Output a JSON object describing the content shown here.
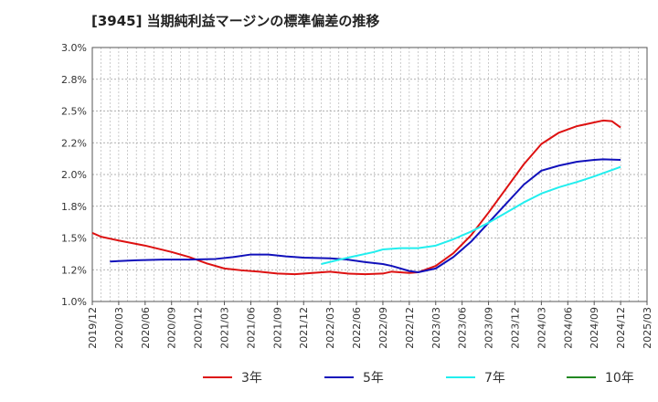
{
  "chart_data": {
    "type": "line",
    "title": "[3945]  当期純利益マージンの標準偏差の推移",
    "xlabel": "",
    "ylabel": "",
    "ylim": [
      1.0,
      3.0
    ],
    "y_ticks": [
      "1.0%",
      "1.2%",
      "1.5%",
      "1.8%",
      "2.0%",
      "2.2%",
      "2.5%",
      "2.8%",
      "3.0%"
    ],
    "x_ticks": [
      "2019/12",
      "2020/03",
      "2020/06",
      "2020/09",
      "2020/12",
      "2021/03",
      "2021/06",
      "2021/09",
      "2021/12",
      "2022/03",
      "2022/06",
      "2022/09",
      "2022/12",
      "2023/03",
      "2023/06",
      "2023/09",
      "2023/12",
      "2024/03",
      "2024/06",
      "2024/09",
      "2024/12",
      "2025/03"
    ],
    "grid": true,
    "legend_position": "bottom",
    "series": [
      {
        "name": "3年",
        "color": "#dd1111",
        "points": [
          [
            "2019/12",
            1.54
          ],
          [
            "2020/01",
            1.51
          ],
          [
            "2020/03",
            1.48
          ],
          [
            "2020/06",
            1.44
          ],
          [
            "2020/09",
            1.39
          ],
          [
            "2020/11",
            1.35
          ],
          [
            "2021/01",
            1.3
          ],
          [
            "2021/03",
            1.26
          ],
          [
            "2021/05",
            1.245
          ],
          [
            "2021/07",
            1.235
          ],
          [
            "2021/09",
            1.22
          ],
          [
            "2021/11",
            1.215
          ],
          [
            "2022/01",
            1.225
          ],
          [
            "2022/03",
            1.235
          ],
          [
            "2022/05",
            1.22
          ],
          [
            "2022/07",
            1.215
          ],
          [
            "2022/09",
            1.22
          ],
          [
            "2022/10",
            1.235
          ],
          [
            "2022/12",
            1.225
          ],
          [
            "2023/01",
            1.23
          ],
          [
            "2023/03",
            1.28
          ],
          [
            "2023/05",
            1.38
          ],
          [
            "2023/07",
            1.52
          ],
          [
            "2023/09",
            1.7
          ],
          [
            "2023/11",
            1.89
          ],
          [
            "2024/01",
            2.08
          ],
          [
            "2024/03",
            2.24
          ],
          [
            "2024/05",
            2.33
          ],
          [
            "2024/07",
            2.38
          ],
          [
            "2024/09",
            2.41
          ],
          [
            "2024/10",
            2.425
          ],
          [
            "2024/11",
            2.42
          ],
          [
            "2024/12",
            2.37
          ]
        ]
      },
      {
        "name": "5年",
        "color": "#1111bb",
        "points": [
          [
            "2020/02",
            1.315
          ],
          [
            "2020/05",
            1.325
          ],
          [
            "2020/08",
            1.33
          ],
          [
            "2020/11",
            1.33
          ],
          [
            "2021/02",
            1.335
          ],
          [
            "2021/04",
            1.35
          ],
          [
            "2021/06",
            1.37
          ],
          [
            "2021/08",
            1.37
          ],
          [
            "2021/10",
            1.355
          ],
          [
            "2021/12",
            1.345
          ],
          [
            "2022/03",
            1.34
          ],
          [
            "2022/05",
            1.33
          ],
          [
            "2022/07",
            1.31
          ],
          [
            "2022/09",
            1.295
          ],
          [
            "2022/10",
            1.28
          ],
          [
            "2022/12",
            1.24
          ],
          [
            "2023/01",
            1.23
          ],
          [
            "2023/03",
            1.26
          ],
          [
            "2023/05",
            1.35
          ],
          [
            "2023/07",
            1.47
          ],
          [
            "2023/09",
            1.62
          ],
          [
            "2023/11",
            1.77
          ],
          [
            "2024/01",
            1.92
          ],
          [
            "2024/03",
            2.03
          ],
          [
            "2024/05",
            2.07
          ],
          [
            "2024/07",
            2.1
          ],
          [
            "2024/09",
            2.115
          ],
          [
            "2024/10",
            2.12
          ],
          [
            "2024/12",
            2.115
          ]
        ]
      },
      {
        "name": "7年",
        "color": "#22eeee",
        "points": [
          [
            "2022/02",
            1.295
          ],
          [
            "2022/05",
            1.345
          ],
          [
            "2022/08",
            1.39
          ],
          [
            "2022/09",
            1.41
          ],
          [
            "2022/11",
            1.42
          ],
          [
            "2023/01",
            1.42
          ],
          [
            "2023/03",
            1.44
          ],
          [
            "2023/05",
            1.49
          ],
          [
            "2023/07",
            1.55
          ],
          [
            "2023/09",
            1.62
          ],
          [
            "2023/11",
            1.7
          ],
          [
            "2024/01",
            1.78
          ],
          [
            "2024/03",
            1.85
          ],
          [
            "2024/05",
            1.9
          ],
          [
            "2024/07",
            1.94
          ],
          [
            "2024/09",
            1.985
          ],
          [
            "2024/12",
            2.06
          ]
        ]
      },
      {
        "name": "10年",
        "color": "#228822",
        "points": []
      }
    ]
  }
}
